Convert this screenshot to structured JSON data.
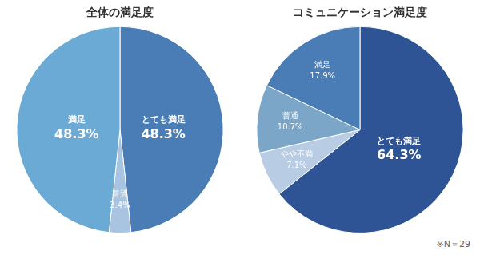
{
  "chart_data": [
    {
      "type": "pie",
      "title": "全体の満足度",
      "categories": [
        "とても満足",
        "普通",
        "満足"
      ],
      "values": [
        48.3,
        3.4,
        48.3
      ],
      "value_labels": [
        "48.3%",
        "3.4%",
        "48.3%"
      ],
      "colors": [
        "#4a7db5",
        "#a8c4e0",
        "#6aaad4"
      ],
      "data_labels": true
    },
    {
      "type": "pie",
      "title": "コミュニケーション満足度",
      "categories": [
        "とても満足",
        "やや不満",
        "普通",
        "満足"
      ],
      "values": [
        64.3,
        7.1,
        10.7,
        17.9
      ],
      "value_labels": [
        "64.3%",
        "7.1%",
        "10.7%",
        "17.9%"
      ],
      "colors": [
        "#2e5496",
        "#b8cce4",
        "#7ca6c8",
        "#4a7db5"
      ],
      "data_labels": true,
      "annotation": "※N＝29"
    }
  ]
}
